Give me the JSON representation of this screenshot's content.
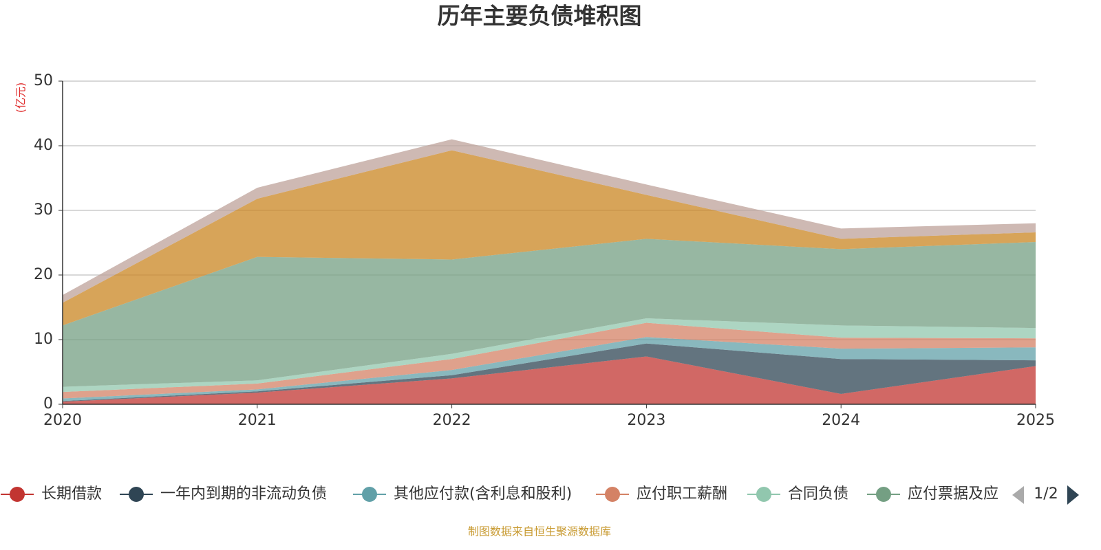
{
  "chart_data": {
    "type": "stacked_area",
    "title": "历年主要负债堆积图",
    "y_label": "(亿元)",
    "source": "制图数据来自恒生聚源数据库",
    "legend_page": "1/2",
    "categories": [
      "2020",
      "2021",
      "2022",
      "2023",
      "2024",
      "2025"
    ],
    "ylim": [
      0,
      50
    ],
    "yticks": [
      0,
      10,
      20,
      30,
      40,
      50
    ],
    "grid": true,
    "series": [
      {
        "name": "长期借款",
        "color": "#c23531",
        "values": [
          0.4,
          1.8,
          4.0,
          7.4,
          1.6,
          5.9
        ]
      },
      {
        "name": "一年内到期的非流动负债",
        "color": "#2f4554",
        "values": [
          0.1,
          0.2,
          0.5,
          2.0,
          5.4,
          0.9
        ]
      },
      {
        "name": "其他应付款(含利息和股利)",
        "color": "#61a0a8",
        "values": [
          0.4,
          0.3,
          0.8,
          1.0,
          1.6,
          2.0
        ]
      },
      {
        "name": "应付职工薪酬",
        "color": "#d48265",
        "values": [
          1.0,
          0.9,
          1.7,
          2.2,
          1.7,
          1.4
        ]
      },
      {
        "name": "合同负债",
        "color": "#91c7ae",
        "values": [
          0.8,
          0.5,
          0.8,
          0.7,
          1.9,
          1.6
        ]
      },
      {
        "name": "应付票据及应",
        "color": "#749f83",
        "values": [
          9.5,
          19.1,
          14.6,
          12.3,
          11.8,
          13.3
        ]
      },
      {
        "color": "#ca8622",
        "values": [
          3.5,
          9.0,
          16.9,
          6.8,
          1.6,
          1.5
        ]
      },
      {
        "color": "#bda29a",
        "values": [
          1.2,
          1.7,
          1.7,
          1.6,
          1.6,
          1.4
        ]
      }
    ]
  }
}
